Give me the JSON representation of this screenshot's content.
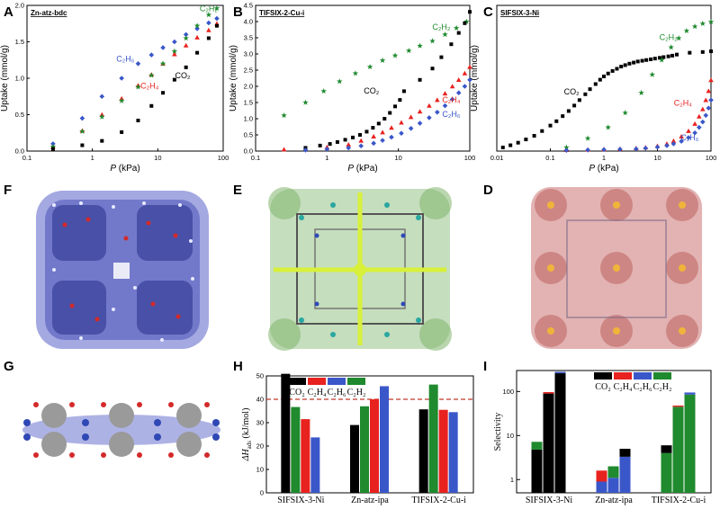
{
  "panels": {
    "A": "A",
    "B": "B",
    "C": "C",
    "D": "D",
    "E": "E",
    "F": "F",
    "G": "G",
    "H": "H",
    "I": "I"
  },
  "colors": {
    "co2": "#000000",
    "c2h4": "#e8221f",
    "c2h6": "#3a57c9",
    "c2h2": "#1f8a2e",
    "structure_blue": "#5a63c8",
    "structure_green": "#7fb56c",
    "structure_pink": "#d89a98",
    "highlight_yellow": "#d8f03a",
    "threshold_line": "#c0392b"
  },
  "legend_labels": {
    "co2": "CO₂",
    "c2h4": "C₂H₄",
    "c2h6": "C₂H₆",
    "c2h2": "C₂H₂"
  },
  "chart_data": [
    {
      "id": "A",
      "type": "scatter",
      "title": "Zn-atz-bdc",
      "xscale": "log",
      "xlim": [
        0.1,
        100
      ],
      "ylim": [
        0,
        2.0
      ],
      "xticks": [
        0.1,
        1,
        10,
        100
      ],
      "xtick_labels": [
        "0.1",
        "1",
        "10",
        "100"
      ],
      "yticks": [
        0,
        0.5,
        1.0,
        1.5,
        2.0
      ],
      "ytick_labels": [
        "0.0",
        "0.5",
        "1.0",
        "1.5",
        "2.0"
      ],
      "xlabel_italic": "P",
      "xlabel_unit": " (kPa)",
      "ylabel": "Uptake (mmol/g)",
      "annotations": [
        {
          "series": "c2h2",
          "text": "C₂H₂",
          "x": 60,
          "y": 1.92
        },
        {
          "series": "c2h6",
          "text": "C₂H₆",
          "x": 3.2,
          "y": 1.23
        },
        {
          "series": "c2h4",
          "text": "C₂H₄",
          "x": 7.5,
          "y": 0.86
        },
        {
          "series": "co2",
          "text": "CO₂",
          "x": 24,
          "y": 1.0
        }
      ],
      "series": [
        {
          "key": "c2h6",
          "marker": "diamond",
          "x": [
            0.25,
            0.7,
            1.4,
            2.8,
            5,
            8,
            12,
            18,
            27,
            40,
            60,
            80
          ],
          "y": [
            0.1,
            0.45,
            0.75,
            1.0,
            1.2,
            1.32,
            1.42,
            1.5,
            1.6,
            1.68,
            1.76,
            1.82
          ]
        },
        {
          "key": "c2h4",
          "marker": "triangle",
          "x": [
            0.25,
            0.7,
            1.4,
            2.8,
            5,
            8,
            12,
            18,
            27,
            40,
            60,
            80
          ],
          "y": [
            0.06,
            0.28,
            0.5,
            0.72,
            0.9,
            1.05,
            1.2,
            1.33,
            1.45,
            1.56,
            1.66,
            1.75
          ]
        },
        {
          "key": "c2h2",
          "marker": "star",
          "x": [
            0.25,
            0.7,
            1.4,
            2.8,
            5,
            8,
            12,
            18,
            27,
            40,
            60,
            80
          ],
          "y": [
            0.06,
            0.27,
            0.47,
            0.69,
            0.88,
            1.04,
            1.2,
            1.37,
            1.55,
            1.72,
            1.87,
            1.96
          ]
        },
        {
          "key": "co2",
          "marker": "square",
          "x": [
            0.25,
            0.7,
            1.4,
            2.8,
            5,
            8,
            12,
            18,
            27,
            40,
            60,
            80
          ],
          "y": [
            0.03,
            0.08,
            0.14,
            0.26,
            0.42,
            0.62,
            0.8,
            0.98,
            1.15,
            1.35,
            1.55,
            1.72
          ]
        }
      ]
    },
    {
      "id": "B",
      "type": "scatter",
      "title": "TIFSIX-2-Cu-i",
      "xscale": "log",
      "xlim": [
        0.1,
        100
      ],
      "ylim": [
        0,
        4.5
      ],
      "xticks": [
        0.1,
        1,
        10,
        100
      ],
      "xtick_labels": [
        "0.1",
        "1",
        "10",
        "100"
      ],
      "yticks": [
        0,
        0.5,
        1.0,
        1.5,
        2.0,
        2.5,
        3.0,
        3.5,
        4.0,
        4.5
      ],
      "ytick_labels": [
        "0.0",
        "0.5",
        "1.0",
        "1.5",
        "2.0",
        "2.5",
        "3.0",
        "3.5",
        "4.0",
        "4.5"
      ],
      "xlabel_italic": "P",
      "xlabel_unit": " (kPa)",
      "ylabel": "Uptake (mmol/g)",
      "annotations": [
        {
          "series": "c2h2",
          "text": "C₂H₂",
          "x": 40,
          "y": 3.75
        },
        {
          "series": "co2",
          "text": "CO₂",
          "x": 4.2,
          "y": 1.78
        },
        {
          "series": "c2h4",
          "text": "C₂H₄",
          "x": 55,
          "y": 1.5
        },
        {
          "series": "c2h6",
          "text": "C₂H₆",
          "x": 55,
          "y": 1.05
        }
      ],
      "series": [
        {
          "key": "c2h2",
          "marker": "star",
          "x": [
            0.25,
            0.5,
            0.9,
            1.5,
            2.5,
            4,
            6,
            9,
            14,
            20,
            30,
            45,
            65,
            90
          ],
          "y": [
            1.1,
            1.5,
            1.85,
            2.15,
            2.4,
            2.6,
            2.8,
            2.95,
            3.1,
            3.25,
            3.4,
            3.6,
            3.8,
            4.0
          ]
        },
        {
          "key": "co2",
          "marker": "square",
          "x": [
            0.5,
            0.8,
            1.1,
            1.4,
            1.8,
            2.3,
            2.9,
            3.6,
            4.4,
            5.3,
            6.4,
            7.6,
            9,
            10.5,
            12,
            20,
            30,
            40,
            55,
            70,
            85,
            100
          ],
          "y": [
            0.1,
            0.17,
            0.22,
            0.28,
            0.35,
            0.42,
            0.5,
            0.6,
            0.72,
            0.85,
            1.0,
            1.18,
            1.38,
            1.58,
            1.85,
            2.2,
            2.55,
            2.9,
            3.3,
            3.65,
            3.95,
            4.3
          ]
        },
        {
          "key": "c2h4",
          "marker": "triangle",
          "x": [
            0.25,
            1,
            2,
            3,
            4.5,
            6,
            8,
            11,
            15,
            20,
            27,
            35,
            45,
            57,
            70,
            85,
            100
          ],
          "y": [
            0.05,
            0.12,
            0.2,
            0.32,
            0.45,
            0.58,
            0.72,
            0.88,
            1.05,
            1.22,
            1.4,
            1.58,
            1.78,
            2.0,
            2.2,
            2.4,
            2.6
          ]
        },
        {
          "key": "c2h6",
          "marker": "diamond",
          "x": [
            0.5,
            1,
            2,
            3,
            4.5,
            6,
            8,
            11,
            15,
            20,
            27,
            35,
            45,
            57,
            70,
            85,
            100
          ],
          "y": [
            0.03,
            0.06,
            0.1,
            0.16,
            0.24,
            0.33,
            0.43,
            0.55,
            0.7,
            0.86,
            1.03,
            1.2,
            1.4,
            1.6,
            1.8,
            2.0,
            2.2
          ]
        }
      ]
    },
    {
      "id": "C",
      "type": "scatter",
      "title": "SIFSIX-3-Ni",
      "xscale": "log",
      "xlim": [
        0.01,
        100
      ],
      "ylim": [
        0,
        4.0
      ],
      "xticks": [
        0.01,
        0.1,
        1,
        10,
        100
      ],
      "xtick_labels": [
        "0.01",
        "0.1",
        "1",
        "10",
        "100"
      ],
      "yticks": [],
      "ytick_labels": [],
      "xlabel_italic": "P",
      "xlabel_unit": " (kPa)",
      "ylabel": "Uptake (mmol/g)",
      "annotations": [
        {
          "series": "c2h2",
          "text": "C₂H₂",
          "x": 16,
          "y": 3.05
        },
        {
          "series": "co2",
          "text": "CO₂",
          "x": 0.25,
          "y": 1.55
        },
        {
          "series": "c2h4",
          "text": "C₂H₄",
          "x": 30,
          "y": 1.25
        },
        {
          "series": "c2h6",
          "text": "C₂H₆",
          "x": 40,
          "y": 0.3
        }
      ],
      "series": [
        {
          "key": "co2",
          "marker": "square",
          "x": [
            0.013,
            0.018,
            0.025,
            0.035,
            0.05,
            0.07,
            0.1,
            0.13,
            0.17,
            0.22,
            0.28,
            0.35,
            0.45,
            0.55,
            0.7,
            0.85,
            1.0,
            1.2,
            1.45,
            1.75,
            2.1,
            2.5,
            3,
            3.6,
            4.3,
            5.2,
            6.2,
            7.5,
            9,
            11,
            13,
            16,
            19,
            23,
            40,
            70,
            100
          ],
          "y": [
            0.1,
            0.16,
            0.23,
            0.32,
            0.42,
            0.55,
            0.7,
            0.82,
            0.96,
            1.1,
            1.25,
            1.4,
            1.56,
            1.7,
            1.84,
            1.96,
            2.05,
            2.13,
            2.2,
            2.26,
            2.32,
            2.36,
            2.4,
            2.43,
            2.46,
            2.48,
            2.5,
            2.52,
            2.54,
            2.56,
            2.58,
            2.6,
            2.62,
            2.65,
            2.7,
            2.72,
            2.74
          ]
        },
        {
          "key": "c2h2",
          "marker": "star",
          "x": [
            0.2,
            0.5,
            1.2,
            2.5,
            5,
            8,
            12,
            18,
            25,
            35,
            50,
            70,
            100
          ],
          "y": [
            0.1,
            0.35,
            0.65,
            1.05,
            1.6,
            2.1,
            2.5,
            2.85,
            3.1,
            3.3,
            3.42,
            3.5,
            3.55
          ]
        },
        {
          "key": "c2h4",
          "marker": "triangle",
          "x": [
            0.2,
            0.5,
            1,
            2,
            4,
            6,
            10,
            15,
            20,
            28,
            38,
            50,
            60,
            70,
            80,
            90,
            100
          ],
          "y": [
            0.03,
            0.04,
            0.05,
            0.06,
            0.08,
            0.1,
            0.14,
            0.2,
            0.28,
            0.4,
            0.55,
            0.75,
            0.95,
            1.15,
            1.4,
            1.65,
            1.95
          ]
        },
        {
          "key": "c2h6",
          "marker": "diamond",
          "x": [
            0.2,
            0.5,
            1,
            2,
            4,
            6,
            10,
            15,
            20,
            28,
            38,
            50,
            60,
            70,
            80,
            90,
            100
          ],
          "y": [
            0.02,
            0.03,
            0.04,
            0.05,
            0.06,
            0.08,
            0.11,
            0.15,
            0.2,
            0.27,
            0.37,
            0.5,
            0.65,
            0.8,
            0.98,
            1.18,
            1.4
          ]
        }
      ]
    },
    {
      "id": "H",
      "type": "bar",
      "categories": [
        "SIFSIX-3-Ni",
        "Zn-atz-ipa",
        "TIFSIX-2-Cu-i"
      ],
      "ylim": [
        0,
        50
      ],
      "yticks": [
        0,
        10,
        20,
        30,
        40,
        50
      ],
      "ytick_labels": [
        "0",
        "10",
        "20",
        "30",
        "40",
        "50"
      ],
      "ylabel_prefix": "ΔH",
      "ylabel_sub": "ads",
      "ylabel_suffix": " (kJ/mol)",
      "threshold": 40,
      "series": [
        {
          "key": "co2",
          "values": [
            50.9,
            29.0,
            35.7
          ]
        },
        {
          "key": "c2h2",
          "values": [
            36.7,
            37.0,
            46.3
          ]
        },
        {
          "key": "c2h4",
          "values": [
            31.5,
            40.0,
            35.5
          ]
        },
        {
          "key": "c2h6",
          "values": [
            23.7,
            45.6,
            34.5
          ]
        }
      ]
    },
    {
      "id": "I",
      "type": "bar",
      "yscale": "log",
      "categories": [
        "SIFSIX-3-Ni",
        "Zn-atz-ipa",
        "TIFSIX-2-Cu-i"
      ],
      "ylim": [
        0.5,
        300
      ],
      "yticks": [
        1,
        10,
        100
      ],
      "ytick_labels": [
        "1",
        "10",
        "100"
      ],
      "ylabel": "Selectivity",
      "series": [
        {
          "key": "stack1",
          "base": {
            "key": "co2",
            "value": 4.8
          },
          "top": {
            "key": "c2h2",
            "value": 7.2
          },
          "cat": 0
        },
        {
          "key": "stack2",
          "base": {
            "key": "co2",
            "value": 90
          },
          "top": {
            "key": "c2h4",
            "value": 97
          },
          "cat": 0
        },
        {
          "key": "stack3",
          "base": {
            "key": "co2",
            "value": 260
          },
          "top": {
            "key": "c2h6",
            "value": 280
          },
          "cat": 0
        },
        {
          "key": "stack4",
          "base": {
            "key": "c2h6",
            "value": 0.9
          },
          "top": {
            "key": "c2h4",
            "value": 1.6
          },
          "cat": 1
        },
        {
          "key": "stack5",
          "base": {
            "key": "c2h6",
            "value": 1.1
          },
          "top": {
            "key": "c2h2",
            "value": 2.0
          },
          "cat": 1
        },
        {
          "key": "stack6",
          "base": {
            "key": "c2h6",
            "value": 3.3
          },
          "top": {
            "key": "co2",
            "value": 5.0
          },
          "cat": 1
        },
        {
          "key": "stack7",
          "base": {
            "key": "c2h2",
            "value": 4.0
          },
          "top": {
            "key": "co2",
            "value": 6.0
          },
          "cat": 2
        },
        {
          "key": "stack8",
          "base": {
            "key": "c2h2",
            "value": 45
          },
          "top": {
            "key": "c2h4",
            "value": 48
          },
          "cat": 2
        },
        {
          "key": "stack9",
          "base": {
            "key": "c2h2",
            "value": 85
          },
          "top": {
            "key": "c2h6",
            "value": 95
          },
          "cat": 2
        }
      ]
    }
  ]
}
